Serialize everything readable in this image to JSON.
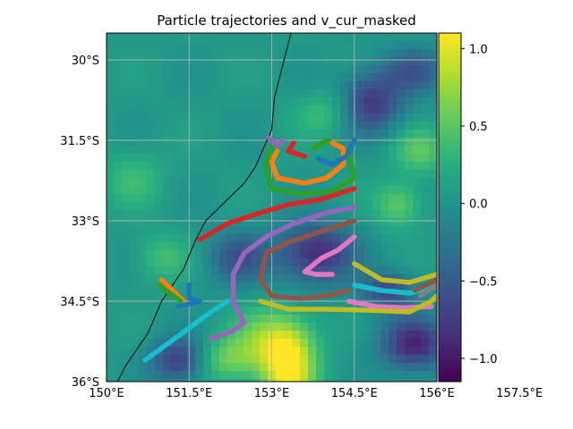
{
  "chart_data": {
    "type": "map",
    "title": "Particle trajectories and v_cur_masked",
    "x_ticks": [
      "150°E",
      "151.5°E",
      "153°E",
      "154.5°E",
      "156°E",
      "157.5°E"
    ],
    "y_ticks": [
      "30°S",
      "31.5°S",
      "33°S",
      "34.5°S",
      "36°S"
    ],
    "xlim": [
      150.0,
      156.0
    ],
    "ylim": [
      -36.0,
      -29.5
    ],
    "grid": true,
    "colorbar": {
      "colormap": "viridis",
      "ticks": [
        "1.0",
        "0.5",
        "0.0",
        "−0.5",
        "−1.0"
      ],
      "tick_values": [
        1.0,
        0.5,
        0.0,
        -0.5,
        -1.0
      ],
      "range": [
        -1.15,
        1.1
      ]
    },
    "coastline": [
      [
        153.35,
        -29.5
      ],
      [
        153.05,
        -30.7
      ],
      [
        153.0,
        -31.3
      ],
      [
        152.7,
        -32.0
      ],
      [
        152.5,
        -32.3
      ],
      [
        151.8,
        -33.0
      ],
      [
        151.6,
        -33.4
      ],
      [
        151.4,
        -33.9
      ],
      [
        151.0,
        -34.5
      ],
      [
        150.75,
        -35.1
      ],
      [
        150.35,
        -35.7
      ],
      [
        150.2,
        -36.0
      ]
    ],
    "colors": {
      "blue": "#1f77b4",
      "orange": "#ff7f0e",
      "green": "#2ca02c",
      "red": "#d62728",
      "purple": "#9467bd",
      "brown": "#8c564b",
      "pink": "#e377c2",
      "gray": "#7f7f7f",
      "olive": "#bcbd22",
      "cyan": "#17becf",
      "coast": "#000000",
      "grid": "#b0b0b0"
    },
    "series": [
      {
        "color": "cyan",
        "points": [
          [
            150.7,
            -35.6
          ],
          [
            151.1,
            -35.3
          ],
          [
            151.5,
            -35.0
          ],
          [
            151.9,
            -34.7
          ],
          [
            152.2,
            -34.5
          ]
        ]
      },
      {
        "color": "purple",
        "points": [
          [
            151.9,
            -35.2
          ],
          [
            152.3,
            -35.05
          ],
          [
            152.5,
            -34.9
          ],
          [
            152.3,
            -34.5
          ],
          [
            152.3,
            -34.0
          ],
          [
            152.5,
            -33.6
          ],
          [
            152.9,
            -33.3
          ],
          [
            153.4,
            -33.05
          ],
          [
            154.0,
            -32.85
          ],
          [
            154.5,
            -32.75
          ]
        ]
      },
      {
        "color": "red",
        "points": [
          [
            151.7,
            -33.35
          ],
          [
            152.2,
            -33.05
          ],
          [
            152.8,
            -32.85
          ],
          [
            153.3,
            -32.7
          ],
          [
            153.9,
            -32.6
          ],
          [
            154.5,
            -32.4
          ]
        ]
      },
      {
        "color": "brown",
        "points": [
          [
            154.5,
            -33.0
          ],
          [
            153.9,
            -33.2
          ],
          [
            153.3,
            -33.4
          ],
          [
            152.9,
            -33.6
          ],
          [
            152.8,
            -34.1
          ],
          [
            153.0,
            -34.4
          ],
          [
            153.5,
            -34.45
          ],
          [
            154.0,
            -34.4
          ],
          [
            154.4,
            -34.3
          ]
        ]
      },
      {
        "color": "pink",
        "points": [
          [
            154.5,
            -33.3
          ],
          [
            154.2,
            -33.55
          ],
          [
            153.9,
            -33.7
          ],
          [
            153.6,
            -33.95
          ],
          [
            153.8,
            -34.0
          ],
          [
            154.1,
            -34.0
          ]
        ]
      },
      {
        "color": "pink",
        "points": [
          [
            154.4,
            -34.5
          ],
          [
            154.9,
            -34.6
          ],
          [
            155.4,
            -34.62
          ],
          [
            155.9,
            -34.6
          ]
        ]
      },
      {
        "color": "olive",
        "points": [
          [
            152.8,
            -34.5
          ],
          [
            153.3,
            -34.65
          ],
          [
            154.0,
            -34.65
          ],
          [
            154.8,
            -34.67
          ],
          [
            155.5,
            -34.7
          ],
          [
            155.9,
            -34.5
          ],
          [
            156.0,
            -34.4
          ]
        ]
      },
      {
        "color": "olive",
        "points": [
          [
            154.5,
            -33.8
          ],
          [
            155.0,
            -34.1
          ],
          [
            155.5,
            -34.15
          ],
          [
            156.0,
            -34.0
          ]
        ]
      },
      {
        "color": "cyan",
        "points": [
          [
            154.5,
            -34.2
          ],
          [
            155.0,
            -34.3
          ],
          [
            155.5,
            -34.35
          ],
          [
            156.0,
            -34.2
          ]
        ]
      },
      {
        "color": "gray",
        "points": [
          [
            155.7,
            -34.4
          ],
          [
            156.0,
            -34.2
          ]
        ]
      },
      {
        "color": "brown",
        "points": [
          [
            155.6,
            -34.3
          ],
          [
            156.0,
            -34.1
          ]
        ]
      },
      {
        "color": "green",
        "points": [
          [
            153.0,
            -31.6
          ],
          [
            152.9,
            -32.0
          ],
          [
            153.0,
            -32.4
          ],
          [
            153.5,
            -32.5
          ],
          [
            154.1,
            -32.45
          ],
          [
            154.5,
            -32.2
          ],
          [
            154.4,
            -31.7
          ],
          [
            154.0,
            -31.5
          ],
          [
            153.75,
            -31.65
          ]
        ]
      },
      {
        "color": "orange",
        "points": [
          [
            153.1,
            -31.7
          ],
          [
            153.0,
            -31.9
          ],
          [
            153.1,
            -32.2
          ],
          [
            153.6,
            -32.3
          ],
          [
            154.0,
            -32.2
          ],
          [
            154.3,
            -31.95
          ],
          [
            154.3,
            -31.65
          ],
          [
            154.1,
            -31.55
          ]
        ]
      },
      {
        "color": "red",
        "points": [
          [
            153.4,
            -31.55
          ],
          [
            153.3,
            -31.7
          ],
          [
            153.6,
            -31.8
          ]
        ]
      },
      {
        "color": "purple",
        "points": [
          [
            152.95,
            -31.45
          ],
          [
            153.1,
            -31.6
          ],
          [
            153.2,
            -31.5
          ]
        ]
      },
      {
        "color": "blue",
        "points": [
          [
            153.85,
            -31.85
          ],
          [
            154.1,
            -31.95
          ],
          [
            154.35,
            -31.8
          ],
          [
            154.5,
            -31.5
          ]
        ]
      },
      {
        "color": "orange",
        "points": [
          [
            151.0,
            -34.1
          ],
          [
            151.2,
            -34.3
          ],
          [
            151.4,
            -34.5
          ]
        ]
      },
      {
        "color": "green",
        "points": [
          [
            150.95,
            -34.2
          ],
          [
            151.15,
            -34.35
          ],
          [
            151.35,
            -34.5
          ]
        ]
      },
      {
        "color": "blue",
        "points": [
          [
            151.5,
            -34.2
          ],
          [
            151.5,
            -34.45
          ],
          [
            151.7,
            -34.5
          ],
          [
            151.3,
            -34.6
          ]
        ]
      }
    ],
    "field_features": [
      {
        "lon": 153.3,
        "lat": -35.8,
        "value": 1.0,
        "sx": 0.35,
        "sy": 0.55
      },
      {
        "lon": 153.0,
        "lat": -35.2,
        "value": 0.55,
        "sx": 0.5,
        "sy": 0.4
      },
      {
        "lon": 152.2,
        "lat": -35.6,
        "value": 0.5,
        "sx": 0.4,
        "sy": 0.3
      },
      {
        "lon": 155.3,
        "lat": -32.7,
        "value": 0.5,
        "sx": 0.3,
        "sy": 0.3
      },
      {
        "lon": 155.7,
        "lat": -31.7,
        "value": 0.45,
        "sx": 0.35,
        "sy": 0.3
      },
      {
        "lon": 154.0,
        "lat": -31.0,
        "value": 0.35,
        "sx": 0.4,
        "sy": 0.3
      },
      {
        "lon": 153.8,
        "lat": -33.6,
        "value": -0.95,
        "sx": 0.5,
        "sy": 0.4
      },
      {
        "lon": 155.6,
        "lat": -35.3,
        "value": -0.95,
        "sx": 0.45,
        "sy": 0.35
      },
      {
        "lon": 154.8,
        "lat": -30.8,
        "value": -0.85,
        "sx": 0.4,
        "sy": 0.4
      },
      {
        "lon": 155.6,
        "lat": -30.2,
        "value": -0.55,
        "sx": 0.4,
        "sy": 0.3
      },
      {
        "lon": 152.4,
        "lat": -33.7,
        "value": -0.6,
        "sx": 0.4,
        "sy": 0.35
      },
      {
        "lon": 151.3,
        "lat": -35.6,
        "value": -0.8,
        "sx": 0.35,
        "sy": 0.3
      },
      {
        "lon": 155.1,
        "lat": -34.3,
        "value": -0.7,
        "sx": 0.35,
        "sy": 0.25
      },
      {
        "lon": 151.0,
        "lat": -33.7,
        "value": 0.35,
        "sx": 0.35,
        "sy": 0.3
      },
      {
        "lon": 150.5,
        "lat": -32.2,
        "value": 0.3,
        "sx": 0.4,
        "sy": 0.4
      }
    ]
  }
}
